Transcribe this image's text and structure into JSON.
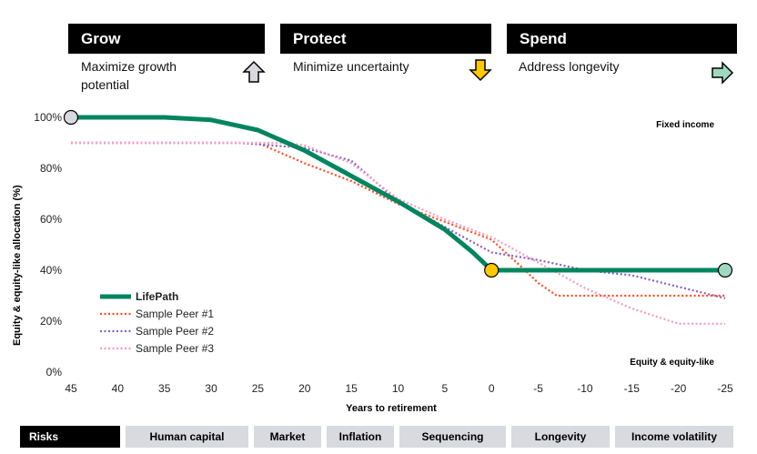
{
  "phases": [
    {
      "title": "Grow",
      "description": "Maximize growth potential",
      "icon": "arrow-up-icon",
      "color": "#d9d9e0"
    },
    {
      "title": "Protect",
      "description": "Minimize uncertainty",
      "icon": "arrow-down-icon",
      "color": "#ffc800"
    },
    {
      "title": "Spend",
      "description": "Address longevity",
      "icon": "arrow-right-icon",
      "color": "#9fd8bf"
    }
  ],
  "risks": [
    "Risks",
    "Human capital",
    "Market",
    "Inflation",
    "Sequencing",
    "Longevity",
    "Income volatility"
  ],
  "chart_data": {
    "type": "line",
    "xlabel": "Years to retirement",
    "ylabel": "Equity & equity-like allocation (%)",
    "xlim": [
      45,
      -25
    ],
    "ylim": [
      0,
      100
    ],
    "xticks": [
      45,
      40,
      35,
      30,
      25,
      20,
      15,
      10,
      5,
      0,
      -5,
      -10,
      -15,
      -20,
      -25
    ],
    "yticks": [
      "0%",
      "20%",
      "40%",
      "60%",
      "80%",
      "100%"
    ],
    "annotations": {
      "top": "Fixed income",
      "bottom": "Equity & equity-like"
    },
    "legend_position": "bottom-left",
    "series": [
      {
        "name": "LifePath",
        "color": "#00855f",
        "style": "solid",
        "x": [
          45,
          35,
          30,
          25,
          20,
          15,
          10,
          5,
          2,
          0,
          -25
        ],
        "y": [
          100,
          100,
          99,
          95,
          87,
          77,
          67,
          56,
          47,
          40,
          40
        ],
        "markers": [
          {
            "x": 45,
            "y": 100,
            "color": "#d9d9e0"
          },
          {
            "x": 0,
            "y": 40,
            "color": "#ffc800"
          },
          {
            "x": -25,
            "y": 40,
            "color": "#9fd8bf"
          }
        ]
      },
      {
        "name": "Sample Peer #1",
        "color": "#ff4c1f",
        "style": "dotted",
        "x": [
          45,
          25,
          20,
          15,
          10,
          5,
          0,
          -3,
          -5,
          -7,
          -25
        ],
        "y": [
          90,
          90,
          82,
          75,
          66,
          59,
          52,
          42,
          35,
          30,
          30
        ]
      },
      {
        "name": "Sample Peer #2",
        "color": "#8a5cc7",
        "style": "dotted",
        "x": [
          45,
          27,
          20,
          15,
          10,
          5,
          0,
          -5,
          -10,
          -15,
          -25
        ],
        "y": [
          90,
          90,
          88,
          83,
          67,
          57,
          47,
          44,
          40,
          38,
          29
        ]
      },
      {
        "name": "Sample Peer #3",
        "color": "#f59ac2",
        "style": "dotted",
        "x": [
          45,
          22,
          20,
          15,
          10,
          5,
          0,
          -5,
          -10,
          -15,
          -20,
          -25
        ],
        "y": [
          90,
          90,
          89,
          82,
          68,
          60,
          53,
          43,
          33,
          25,
          19,
          19
        ]
      }
    ]
  }
}
